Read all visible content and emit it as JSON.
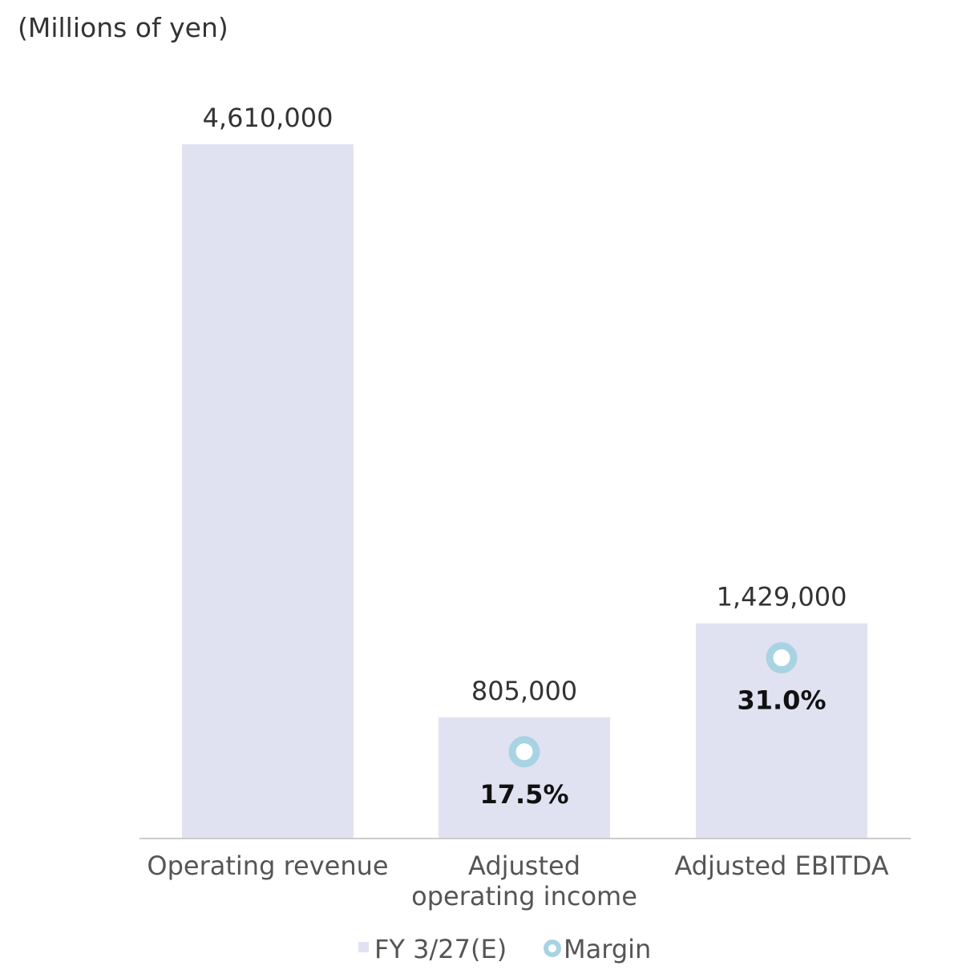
{
  "chart_data": {
    "type": "bar",
    "unit_label": "(Millions of yen)",
    "categories": [
      [
        "Operating revenue"
      ],
      [
        "Adjusted",
        "operating income"
      ],
      [
        "Adjusted  EBITDA"
      ]
    ],
    "series": [
      {
        "name": "FY 3/27(E)",
        "values": [
          4610000,
          805000,
          1429000
        ],
        "value_labels": [
          "4,610,000",
          "805,000",
          "1,429,000"
        ]
      },
      {
        "name": "Margin",
        "values": [
          null,
          17.5,
          31.0
        ],
        "value_labels": [
          "",
          "17.5%",
          "31.0%"
        ]
      }
    ],
    "ylim": [
      0,
      4610000
    ],
    "grid": false,
    "legend_position": "bottom-center",
    "colors": {
      "bar": "#e1e2f1",
      "margin_marker": "#a8d3e3",
      "axis": "#cccccc"
    }
  }
}
